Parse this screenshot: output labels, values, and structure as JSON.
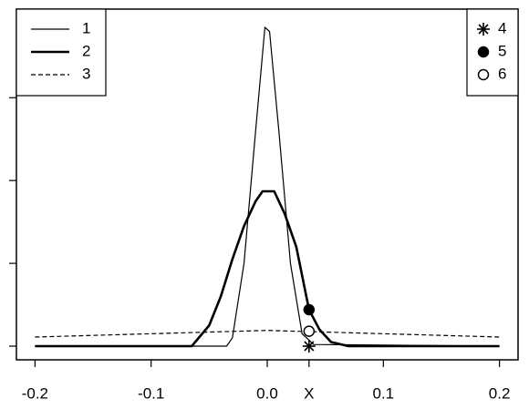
{
  "chart_data": {
    "type": "line",
    "xlim": [
      -0.216,
      0.216
    ],
    "ylim": [
      -0.165,
      4.07
    ],
    "xticks": [
      -0.2,
      -0.1,
      {
        "value": 0,
        "label": "0.0"
      },
      {
        "value": 0.036,
        "label": "X"
      },
      0.1,
      0.2
    ],
    "yticks": [
      0,
      1,
      2,
      3
    ],
    "legends": [
      "upper left",
      "upper right"
    ],
    "series": [
      {
        "name": "1",
        "color": "#000000",
        "style": "thin",
        "legend": 0,
        "x": [
          -0.2,
          -0.035,
          -0.03,
          -0.02,
          -0.01,
          -0.002,
          0.002,
          0.01,
          0.02,
          0.03,
          0.04,
          0.2
        ],
        "values": [
          0,
          0,
          0.1,
          1.0,
          2.6,
          3.85,
          3.8,
          2.6,
          1.0,
          0.15,
          0.02,
          0
        ]
      },
      {
        "name": "2",
        "color": "#000000",
        "style": "thick",
        "legend": 0,
        "x": [
          -0.2,
          -0.065,
          -0.05,
          -0.04,
          -0.03,
          -0.02,
          -0.01,
          -0.004,
          0.006,
          0.015,
          0.025,
          0.036,
          0.045,
          0.055,
          0.07,
          0.2
        ],
        "values": [
          0,
          0,
          0.25,
          0.6,
          1.05,
          1.45,
          1.75,
          1.87,
          1.87,
          1.6,
          1.2,
          0.44,
          0.2,
          0.05,
          0,
          0
        ]
      },
      {
        "name": "3",
        "color": "#000000",
        "style": "dashed",
        "legend": 0,
        "x": [
          -0.2,
          -0.1,
          -0.05,
          0,
          0.05,
          0.1,
          0.2
        ],
        "values": [
          0.11,
          0.15,
          0.17,
          0.19,
          0.17,
          0.15,
          0.11
        ]
      },
      {
        "name": "4",
        "color": "#000000",
        "marker": "star",
        "legend": 1,
        "x": [
          0.036
        ],
        "values": [
          0
        ]
      },
      {
        "name": "5",
        "color": "#000000",
        "marker": "filled",
        "legend": 1,
        "x": [
          0.036
        ],
        "values": [
          0.44
        ]
      },
      {
        "name": "6",
        "color": "#000000",
        "marker": "open",
        "legend": 1,
        "x": [
          0.036
        ],
        "values": [
          0.18
        ]
      }
    ]
  }
}
